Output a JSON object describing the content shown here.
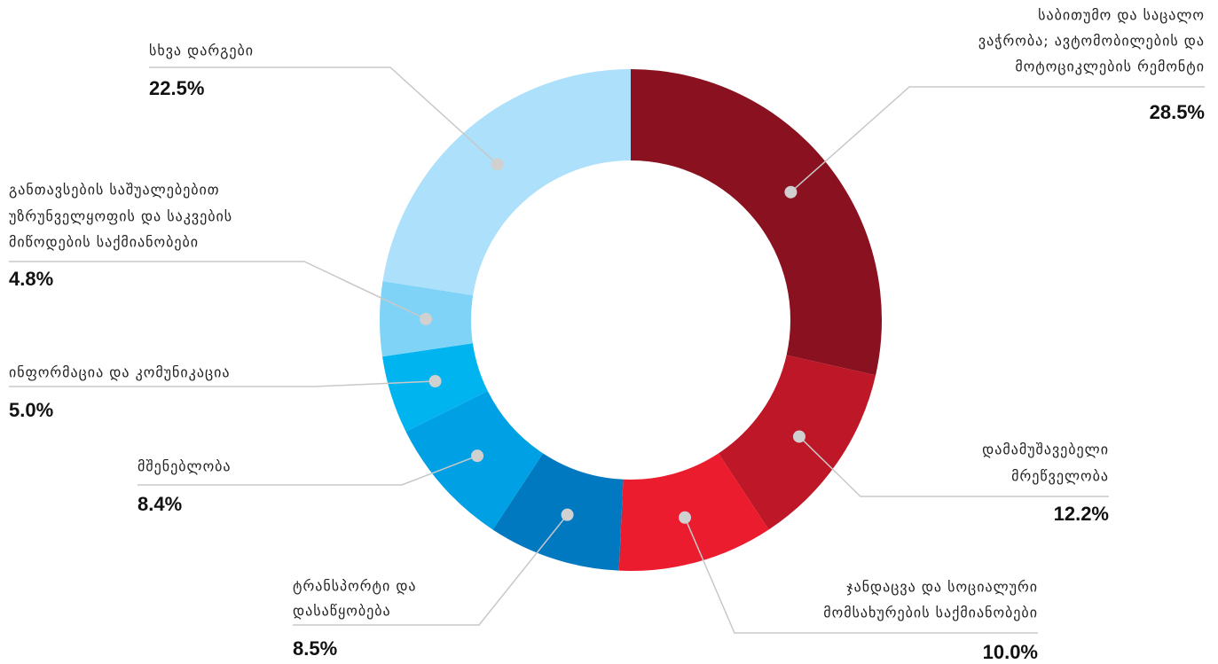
{
  "chart_data": {
    "type": "donut",
    "categories": [
      "საბითუმო და საცალო ვაჭრობა; ავტომობილების და მოტოციკლების რემონტი",
      "დამამუშავებელი მრეწველობა",
      "ჯანდაცვა და სოციალური მომსახურების საქმიანობები",
      "ტრანსპორტი და დასაწყობება",
      "მშენებლობა",
      "ინფორმაცია და კომუნიკაცია",
      "განთავსების საშუალებებით უზრუნველყოფის და საკვების მიწოდების საქმიანობები",
      "სხვა დარგები"
    ],
    "values": [
      28.5,
      12.2,
      10.0,
      8.5,
      8.4,
      5.0,
      4.8,
      22.5
    ],
    "value_labels": [
      "28.5%",
      "12.2%",
      "10.0%",
      "8.5%",
      "8.4%",
      "5.0%",
      "4.8%",
      "22.5%"
    ],
    "colors": [
      "#8a111f",
      "#be1727",
      "#ec1c2f",
      "#0079c1",
      "#00a1e4",
      "#00b5ef",
      "#7fd3f7",
      "#ade0fa"
    ]
  }
}
